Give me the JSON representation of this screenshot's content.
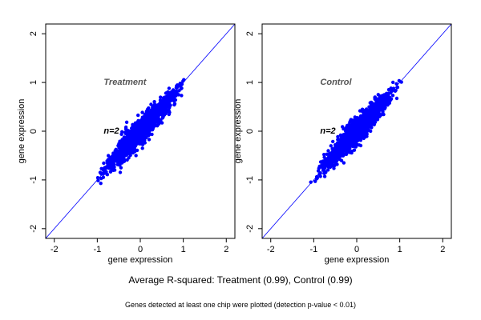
{
  "chart_data": [
    {
      "type": "scatter",
      "title": "",
      "annotation_label": "Treatment",
      "n_label": "n=2",
      "xlabel": "gene expression",
      "ylabel": "gene expression",
      "xlim": [
        -2.2,
        2.2
      ],
      "ylim": [
        -2.2,
        2.2
      ],
      "xticks": [
        -2,
        -1,
        0,
        1,
        2
      ],
      "yticks": [
        -2,
        -1,
        0,
        1,
        2
      ],
      "grid": false,
      "reference_line": "identity",
      "point_color": "#0000ff",
      "line_color": "#0000ff",
      "points": {
        "x_range": [
          -1.15,
          1.15
        ],
        "y_range": [
          -1.2,
          1.15
        ],
        "spread": 0.06,
        "outliers": [
          [
            0.15,
            0.3
          ],
          [
            0.05,
            -0.35
          ],
          [
            -0.1,
            -0.5
          ],
          [
            0.25,
            0.55
          ],
          [
            -0.45,
            -0.75
          ],
          [
            0.45,
            0.35
          ]
        ]
      }
    },
    {
      "type": "scatter",
      "title": "",
      "annotation_label": "Control",
      "n_label": "n=2",
      "xlabel": "gene expression",
      "ylabel": "gene expression",
      "xlim": [
        -2.2,
        2.2
      ],
      "ylim": [
        -2.2,
        2.2
      ],
      "xticks": [
        -2,
        -1,
        0,
        1,
        2
      ],
      "yticks": [
        -2,
        -1,
        0,
        1,
        2
      ],
      "grid": false,
      "reference_line": "identity",
      "point_color": "#0000ff",
      "line_color": "#0000ff",
      "points": {
        "x_range": [
          -1.15,
          1.15
        ],
        "y_range": [
          -1.2,
          1.15
        ],
        "spread": 0.06,
        "outliers": [
          [
            -0.15,
            0.05
          ],
          [
            0.2,
            0.4
          ],
          [
            -0.6,
            -0.3
          ],
          [
            0.5,
            0.75
          ],
          [
            -0.3,
            -0.65
          ]
        ]
      }
    }
  ],
  "caption_main": "Average R-squared: Treatment (0.99), Control (0.99)",
  "caption_sub": "Genes detected at least one chip were plotted (detection p-value < 0.01)"
}
